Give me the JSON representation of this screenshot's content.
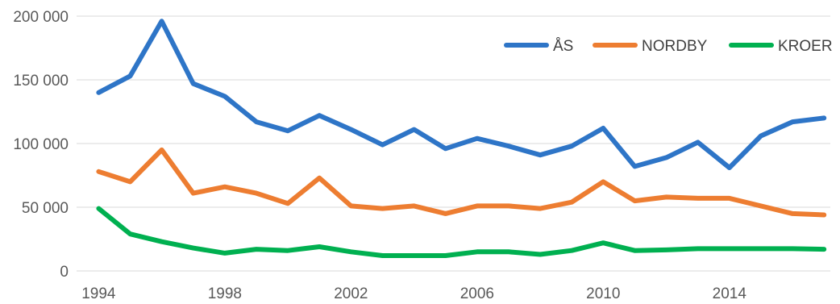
{
  "chart_data": {
    "type": "line",
    "title": "",
    "xlabel": "",
    "ylabel": "",
    "x": [
      1994,
      1995,
      1996,
      1997,
      1998,
      1999,
      2000,
      2001,
      2002,
      2003,
      2004,
      2005,
      2006,
      2007,
      2008,
      2009,
      2010,
      2011,
      2012,
      2013,
      2014,
      2015,
      2016,
      2017
    ],
    "xticks": [
      1994,
      1998,
      2002,
      2006,
      2010,
      2014
    ],
    "xtick_labels": [
      "1994",
      "1998",
      "2002",
      "2006",
      "2010",
      "2014"
    ],
    "yticks": [
      0,
      50000,
      100000,
      150000,
      200000
    ],
    "ytick_labels": [
      "0",
      "50 000",
      "100 000",
      "150 000",
      "200 000"
    ],
    "ylim": [
      0,
      200000
    ],
    "grid": "horizontal",
    "legend_position": "top-right",
    "series": [
      {
        "name": "ÅS",
        "color": "#2e75c7",
        "values": [
          140000,
          153000,
          196000,
          147000,
          137000,
          117000,
          110000,
          122000,
          111000,
          99000,
          111000,
          96000,
          104000,
          98000,
          91000,
          98000,
          112000,
          82000,
          89000,
          101000,
          81000,
          106000,
          117000,
          120000
        ]
      },
      {
        "name": "NORDBY",
        "color": "#ed7d31",
        "values": [
          78000,
          70000,
          95000,
          61000,
          66000,
          61000,
          53000,
          73000,
          51000,
          49000,
          51000,
          45000,
          51000,
          51000,
          49000,
          54000,
          70000,
          55000,
          58000,
          57000,
          57000,
          51000,
          45000,
          44000
        ]
      },
      {
        "name": "KROER",
        "color": "#00b050",
        "values": [
          49000,
          29000,
          23000,
          18000,
          14000,
          17000,
          16000,
          19000,
          15000,
          12000,
          12000,
          12000,
          15000,
          15000,
          13000,
          16000,
          22000,
          16000,
          16500,
          17500,
          17500,
          17500,
          17500,
          17000
        ]
      }
    ]
  }
}
